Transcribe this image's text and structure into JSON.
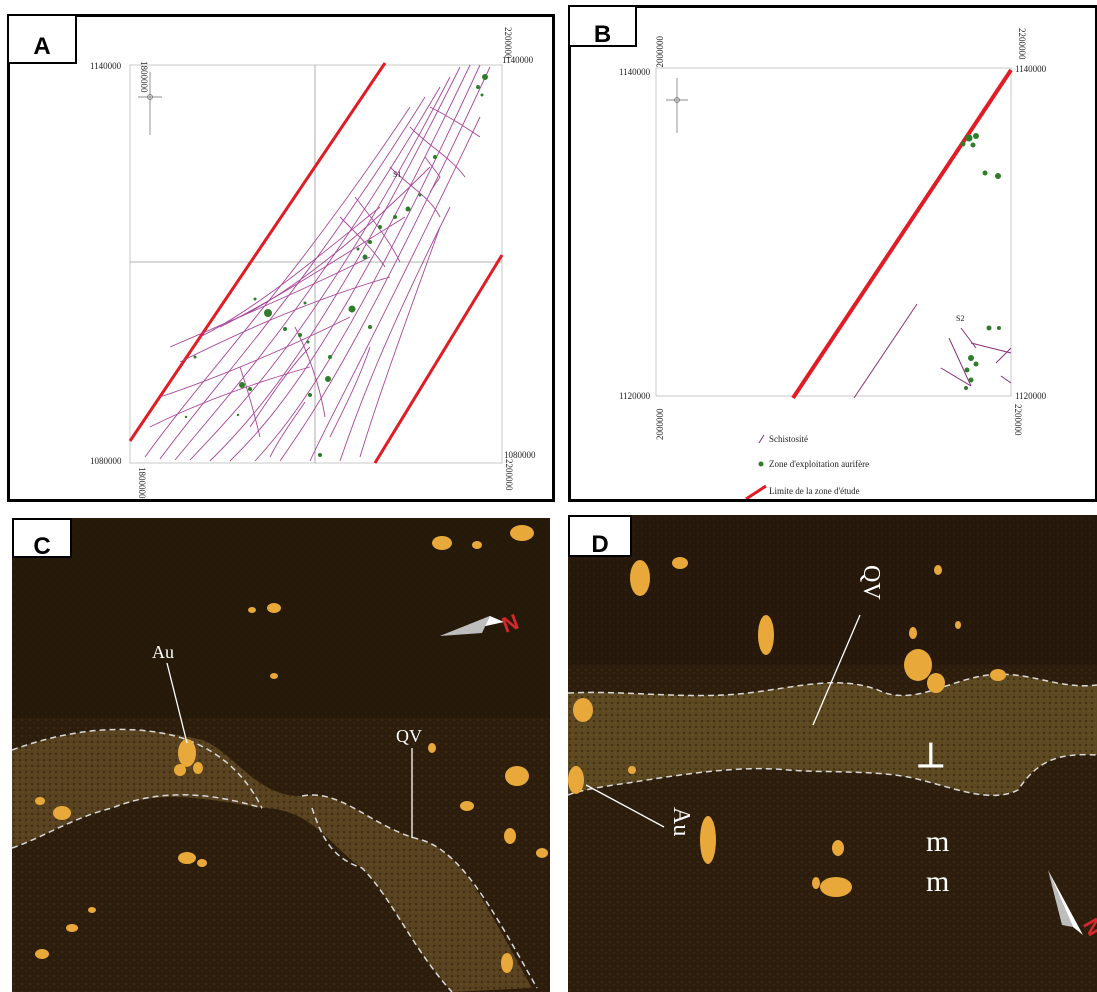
{
  "panel_a": {
    "letter": "A",
    "coords": {
      "top_left_x": "1800000",
      "top_right_x": "2200000",
      "bottom_left_x": "1800000",
      "bottom_right_x": "2200000",
      "top_y_left": "1140000",
      "top_y_right": "1140000",
      "bottom_y_left": "1080000",
      "bottom_y_right": "1080000"
    },
    "label_s1": "S1",
    "colors": {
      "boundary": "#e31b23",
      "schistosity": "#a9459b",
      "gold_zone": "#2f7d2a",
      "grid": "#9a9a9a"
    }
  },
  "panel_b": {
    "letter": "B",
    "coords": {
      "top_left_x": "2000000",
      "top_right_x": "2200000",
      "bottom_left_x": "2000000",
      "bottom_right_x": "2200000",
      "top_y_left": "1140000",
      "top_y_right": "1140000",
      "bottom_y_left": "1120000",
      "bottom_y_right": "1120000"
    },
    "label_s2": "S2",
    "legend": {
      "schistosity": "Schistosité",
      "gold_zone": "Zone d'exploitation aurifère",
      "boundary": "Limite de la zone d'étude"
    }
  },
  "panel_c": {
    "letter": "C",
    "label_au": "Au",
    "label_qv": "QV",
    "north_label": "N"
  },
  "panel_d": {
    "letter": "D",
    "label_qv": "QV",
    "label_au": "Au",
    "label_perp": "⊥",
    "label_m1": "m",
    "label_m2": "m",
    "north_label": "N"
  }
}
